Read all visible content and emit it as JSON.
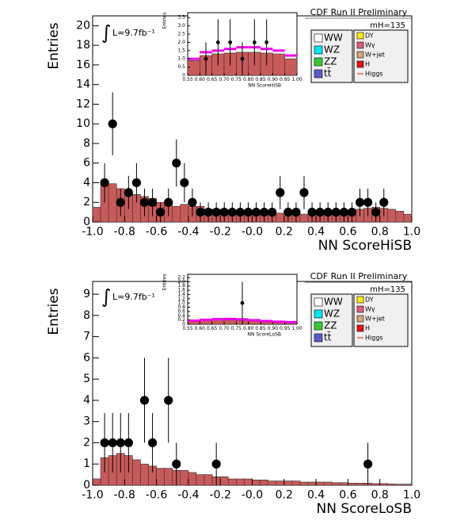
{
  "chart_data": [
    {
      "type": "histogram",
      "title": "CDF Run II Preliminary",
      "xlabel": "NN ScoreHiSB",
      "ylabel": "Entries",
      "annotations": [
        "L=9.7fb⁻¹",
        "mH=135"
      ],
      "xlim": [
        -1,
        1
      ],
      "ylim": [
        0,
        21
      ],
      "xticks": [
        {
          "value": -1,
          "label": "-1.0"
        },
        -0.8,
        -0.6,
        -0.4,
        -0.2,
        {
          "value": 0,
          "label": "-0.0"
        },
        0.2,
        0.4,
        0.6,
        0.8,
        {
          "value": 1,
          "label": "1.0"
        }
      ],
      "yticks": [
        0,
        2,
        4,
        6,
        8,
        10,
        12,
        14,
        16,
        18,
        20
      ],
      "color": "#c85a5a",
      "bins": [
        -1,
        -0.95,
        -0.9,
        -0.85,
        -0.8,
        -0.75,
        -0.7,
        -0.65,
        -0.6,
        -0.55,
        -0.5,
        -0.45,
        -0.4,
        -0.35,
        -0.3,
        -0.25,
        -0.2,
        -0.15,
        -0.1,
        -0.05,
        0,
        0.05,
        0.1,
        0.15,
        0.2,
        0.25,
        0.3,
        0.35,
        0.4,
        0.45,
        0.5,
        0.55,
        0.6,
        0.65,
        0.7,
        0.75,
        0.8,
        0.85,
        0.9,
        0.95,
        1
      ],
      "values": [
        1.5,
        4.2,
        3.9,
        3.4,
        3.0,
        2.8,
        2.6,
        2.4,
        2.0,
        2.0,
        1.6,
        1.8,
        1.6,
        1.6,
        1.3,
        1.3,
        1.2,
        1.1,
        1.1,
        1.0,
        1.0,
        0.9,
        0.9,
        0.9,
        0.9,
        0.8,
        0.8,
        0.8,
        0.8,
        0.9,
        1.0,
        1.1,
        1.2,
        1.3,
        1.4,
        1.5,
        1.4,
        1.3,
        1.1,
        0.8
      ],
      "points": {
        "x": [
          -0.925,
          -0.875,
          -0.825,
          -0.775,
          -0.725,
          -0.675,
          -0.625,
          -0.575,
          -0.525,
          -0.475,
          -0.425,
          -0.375,
          -0.325,
          -0.275,
          -0.225,
          -0.175,
          -0.125,
          -0.075,
          -0.025,
          0.025,
          0.075,
          0.125,
          0.175,
          0.225,
          0.275,
          0.325,
          0.375,
          0.425,
          0.475,
          0.525,
          0.575,
          0.625,
          0.675,
          0.725,
          0.775,
          0.825
        ],
        "y": [
          4,
          10,
          2,
          3,
          4,
          2,
          2,
          1,
          2,
          6,
          4,
          2,
          1,
          1,
          1,
          1,
          1,
          1,
          1,
          1,
          1,
          1,
          3,
          1,
          1,
          3,
          1,
          1,
          1,
          1,
          1,
          1,
          2,
          2,
          1,
          2
        ],
        "err": [
          2,
          3.2,
          1.4,
          1.7,
          2,
          1.4,
          1.4,
          1,
          1.4,
          2.4,
          2,
          1.4,
          1,
          1,
          1,
          1,
          1,
          1,
          1,
          1,
          1,
          1,
          1.7,
          1,
          1,
          1.7,
          1,
          1,
          1,
          1,
          1,
          1,
          1.4,
          1.4,
          1,
          1.4
        ]
      },
      "legend": [
        {
          "name": "WW",
          "color": "#ffffff"
        },
        {
          "name": "WZ",
          "color": "#00e5ee"
        },
        {
          "name": "ZZ",
          "color": "#33cc33"
        },
        {
          "name": "tt̄",
          "color": "#5a5ad0"
        },
        {
          "name": "DY",
          "color": "#ffee00"
        },
        {
          "name": "Wγ",
          "color": "#d8607a"
        },
        {
          "name": "W+jet",
          "color": "#d9a47a"
        },
        {
          "name": "H",
          "color": "#ee1111"
        },
        {
          "name": "Higgs",
          "color": "#ee1111",
          "marker": "line"
        }
      ],
      "inset": {
        "xlabel": "NN ScoreHiSB",
        "ylabel": "Entries",
        "xlim": [
          0.55,
          1
        ],
        "ylim": [
          0,
          3.8
        ],
        "xticks": [
          0.55,
          {
            "value": 0.6,
            "label": "0.60"
          },
          0.65,
          {
            "value": 0.7,
            "label": "0.70"
          },
          0.75,
          {
            "value": 0.8,
            "label": "0.80"
          },
          0.85,
          {
            "value": 0.9,
            "label": "0.90"
          },
          0.95,
          {
            "value": 1,
            "label": "1.00"
          }
        ],
        "yticks": [
          0,
          0.5,
          {
            "value": 1,
            "label": "1.0"
          },
          1.5,
          {
            "value": 2,
            "label": "2.0"
          },
          2.5,
          {
            "value": 3,
            "label": "3.0"
          },
          3.5
        ],
        "bins": [
          0.55,
          0.6,
          0.65,
          0.7,
          0.75,
          0.8,
          0.85,
          0.9,
          0.95,
          1
        ],
        "values": [
          0.9,
          1.2,
          1.3,
          1.35,
          1.4,
          1.4,
          1.35,
          1.3,
          1.0
        ],
        "signal": [
          1.0,
          1.4,
          1.5,
          1.6,
          1.7,
          1.7,
          1.6,
          1.5,
          1.2
        ],
        "signal_color": "#ee00ee",
        "points": {
          "x": [
            0.625,
            0.675,
            0.725,
            0.775,
            0.825,
            0.875
          ],
          "y": [
            1,
            2,
            2,
            1,
            2,
            2
          ],
          "err": [
            1,
            1.4,
            1.4,
            1,
            1.4,
            1.4
          ]
        }
      }
    },
    {
      "type": "histogram",
      "title": "CDF Run II Preliminary",
      "xlabel": "NN ScoreLoSB",
      "ylabel": "Entries",
      "annotations": [
        "L=9.7fb⁻¹",
        "mH=135"
      ],
      "xlim": [
        -1,
        1
      ],
      "ylim": [
        0,
        9.6
      ],
      "xticks": [
        {
          "value": -1,
          "label": "-1.0"
        },
        -0.8,
        -0.6,
        -0.4,
        -0.2,
        {
          "value": 0,
          "label": "-0.0"
        },
        0.2,
        0.4,
        0.6,
        0.8,
        {
          "value": 1,
          "label": "1.0"
        }
      ],
      "yticks": [
        0,
        1,
        2,
        3,
        4,
        5,
        6,
        7,
        8,
        9
      ],
      "color": "#c85a5a",
      "bins": [
        -1,
        -0.95,
        -0.9,
        -0.85,
        -0.8,
        -0.75,
        -0.7,
        -0.65,
        -0.6,
        -0.55,
        -0.5,
        -0.45,
        -0.4,
        -0.35,
        -0.3,
        -0.25,
        -0.2,
        -0.15,
        -0.1,
        -0.05,
        0,
        0.05,
        0.1,
        0.15,
        0.2,
        0.25,
        0.3,
        0.35,
        0.4,
        0.45,
        0.5,
        0.55,
        0.6,
        0.65,
        0.7,
        0.75,
        0.8,
        0.85,
        0.9,
        0.95,
        1
      ],
      "values": [
        0.3,
        1.3,
        1.4,
        1.5,
        1.4,
        1.2,
        1.0,
        0.9,
        0.8,
        0.8,
        0.7,
        0.7,
        0.6,
        0.5,
        0.5,
        0.4,
        0.4,
        0.3,
        0.3,
        0.3,
        0.25,
        0.25,
        0.2,
        0.2,
        0.2,
        0.2,
        0.15,
        0.15,
        0.15,
        0.15,
        0.12,
        0.12,
        0.1,
        0.1,
        0.1,
        0.08,
        0.08,
        0.06,
        0.05,
        0.05
      ],
      "points": {
        "x": [
          -0.925,
          -0.875,
          -0.825,
          -0.775,
          -0.675,
          -0.625,
          -0.525,
          -0.475,
          -0.225,
          0.725
        ],
        "y": [
          2,
          2,
          2,
          2,
          4,
          2,
          4,
          1,
          1,
          1
        ],
        "err": [
          1.4,
          1.4,
          1.4,
          1.4,
          2,
          1.4,
          2,
          1,
          1,
          1
        ]
      },
      "legend": [
        {
          "name": "WW",
          "color": "#ffffff"
        },
        {
          "name": "WZ",
          "color": "#00e5ee"
        },
        {
          "name": "ZZ",
          "color": "#33cc33"
        },
        {
          "name": "tt̄",
          "color": "#5a5ad0"
        },
        {
          "name": "DY",
          "color": "#ffee00"
        },
        {
          "name": "Wγ",
          "color": "#d8607a"
        },
        {
          "name": "W+jet",
          "color": "#d9a47a"
        },
        {
          "name": "H",
          "color": "#ee1111"
        },
        {
          "name": "Higgs",
          "color": "#ee1111",
          "marker": "line"
        }
      ],
      "inset": {
        "xlabel": "NN ScoreLoSB",
        "ylabel": "Entries",
        "xlim": [
          0.55,
          1
        ],
        "ylim": [
          0,
          2.35
        ],
        "xticks": [
          0.55,
          {
            "value": 0.6,
            "label": "0.60"
          },
          0.65,
          {
            "value": 0.7,
            "label": "0.70"
          },
          0.75,
          {
            "value": 0.8,
            "label": "0.80"
          },
          0.85,
          {
            "value": 0.9,
            "label": "0.90"
          },
          0.95,
          {
            "value": 1,
            "label": "1.00"
          }
        ],
        "yticks": [
          0,
          0.2,
          0.4,
          0.6,
          0.8,
          {
            "value": 1,
            "label": "1.0"
          },
          1.2,
          1.4,
          1.6,
          1.8,
          {
            "value": 2,
            "label": "2.0"
          },
          2.2
        ],
        "bins": [
          0.55,
          0.6,
          0.65,
          0.7,
          0.75,
          0.8,
          0.85,
          0.9,
          0.95,
          1
        ],
        "values": [
          0.15,
          0.18,
          0.2,
          0.2,
          0.18,
          0.15,
          0.12,
          0.1,
          0.08
        ],
        "signal": [
          0.17,
          0.21,
          0.24,
          0.25,
          0.23,
          0.19,
          0.15,
          0.12,
          0.1
        ],
        "signal_color": "#ee00ee",
        "points": {
          "x": [
            0.775
          ],
          "y": [
            1
          ],
          "err": [
            1
          ]
        }
      }
    }
  ]
}
